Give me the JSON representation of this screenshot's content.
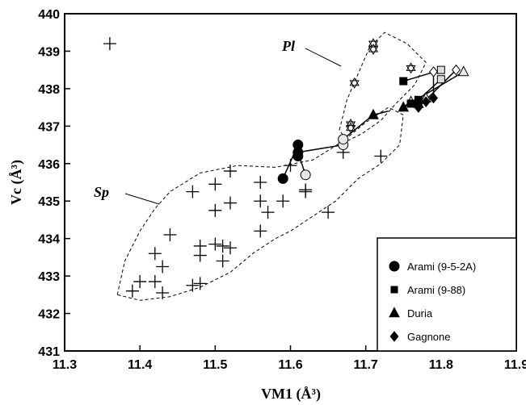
{
  "chart_data": {
    "type": "scatter",
    "xlabel": "VM1 (Å³)",
    "ylabel": "Vc (Å³)",
    "xlim": [
      11.3,
      11.9
    ],
    "ylim": [
      431,
      440
    ],
    "x_ticks": [
      "11.3",
      "11.4",
      "11.5",
      "11.6",
      "11.7",
      "11.8",
      "11.9"
    ],
    "y_ticks": [
      "431",
      "432",
      "433",
      "434",
      "435",
      "436",
      "437",
      "438",
      "439",
      "440"
    ],
    "grid": false,
    "legend_position": "bottom-right",
    "region_labels": [
      {
        "text": "Sp",
        "region": "Sp"
      },
      {
        "text": "Pl",
        "region": "Pl"
      }
    ],
    "regions": {
      "Sp": [
        [
          11.37,
          432.5
        ],
        [
          11.38,
          433.4
        ],
        [
          11.4,
          434.2
        ],
        [
          11.42,
          434.8
        ],
        [
          11.44,
          435.25
        ],
        [
          11.48,
          435.75
        ],
        [
          11.53,
          435.95
        ],
        [
          11.58,
          435.9
        ],
        [
          11.63,
          436.1
        ],
        [
          11.67,
          436.6
        ],
        [
          11.7,
          437.1
        ],
        [
          11.73,
          437.5
        ],
        [
          11.75,
          437.3
        ],
        [
          11.745,
          436.5
        ],
        [
          11.72,
          436.0
        ],
        [
          11.69,
          435.6
        ],
        [
          11.66,
          435.0
        ],
        [
          11.63,
          434.6
        ],
        [
          11.6,
          434.2
        ],
        [
          11.58,
          434.0
        ],
        [
          11.55,
          433.6
        ],
        [
          11.52,
          433.1
        ],
        [
          11.48,
          432.7
        ],
        [
          11.44,
          432.45
        ],
        [
          11.4,
          432.35
        ]
      ],
      "Pl": [
        [
          11.665,
          436.9
        ],
        [
          11.675,
          437.7
        ],
        [
          11.69,
          438.4
        ],
        [
          11.705,
          439.1
        ],
        [
          11.725,
          439.5
        ],
        [
          11.755,
          439.2
        ],
        [
          11.78,
          438.7
        ],
        [
          11.765,
          438.1
        ],
        [
          11.74,
          437.6
        ],
        [
          11.72,
          437.15
        ],
        [
          11.695,
          436.8
        ],
        [
          11.675,
          436.6
        ]
      ]
    },
    "plus_points": [
      [
        11.36,
        439.2
      ],
      [
        11.47,
        435.25
      ],
      [
        11.5,
        435.45
      ],
      [
        11.52,
        435.8
      ],
      [
        11.5,
        434.75
      ],
      [
        11.52,
        434.95
      ],
      [
        11.56,
        435.0
      ],
      [
        11.56,
        435.5
      ],
      [
        11.57,
        434.7
      ],
      [
        11.59,
        435.0
      ],
      [
        11.6,
        435.95
      ],
      [
        11.62,
        435.3
      ],
      [
        11.62,
        435.25
      ],
      [
        11.56,
        434.2
      ],
      [
        11.65,
        434.7
      ],
      [
        11.67,
        436.3
      ],
      [
        11.72,
        436.2
      ],
      [
        11.44,
        434.1
      ],
      [
        11.42,
        433.6
      ],
      [
        11.43,
        433.25
      ],
      [
        11.48,
        433.8
      ],
      [
        11.48,
        433.55
      ],
      [
        11.5,
        433.85
      ],
      [
        11.51,
        433.8
      ],
      [
        11.52,
        433.75
      ],
      [
        11.51,
        433.4
      ],
      [
        11.39,
        432.6
      ],
      [
        11.4,
        432.85
      ],
      [
        11.42,
        432.85
      ],
      [
        11.43,
        432.55
      ],
      [
        11.47,
        432.75
      ],
      [
        11.48,
        432.8
      ]
    ],
    "star_points": [
      [
        11.71,
        439.2
      ],
      [
        11.71,
        439.05
      ],
      [
        11.76,
        438.55
      ],
      [
        11.685,
        438.15
      ],
      [
        11.68,
        437.05
      ],
      [
        11.68,
        436.95
      ]
    ],
    "open_circles": [
      [
        11.62,
        435.7
      ],
      [
        11.67,
        436.5
      ],
      [
        11.67,
        436.65
      ]
    ],
    "open_squares": [
      [
        11.8,
        438.5
      ],
      [
        11.8,
        438.25
      ]
    ],
    "open_triangles": [
      [
        11.76,
        437.65
      ],
      [
        11.78,
        437.75
      ],
      [
        11.83,
        438.45
      ]
    ],
    "open_diamonds": [
      [
        11.82,
        438.5
      ],
      [
        11.79,
        438.45
      ]
    ],
    "series": [
      {
        "name": "Arami (9-5-2A)",
        "marker": "circle",
        "points": [
          [
            11.59,
            435.6
          ],
          [
            11.61,
            436.5
          ],
          [
            11.61,
            436.3
          ],
          [
            11.61,
            436.2
          ]
        ]
      },
      {
        "name": "Arami (9-88)",
        "marker": "square",
        "points": [
          [
            11.75,
            438.2
          ],
          [
            11.76,
            437.6
          ],
          [
            11.77,
            437.7
          ]
        ]
      },
      {
        "name": "Duria",
        "marker": "triangle",
        "points": [
          [
            11.71,
            437.3
          ],
          [
            11.75,
            437.5
          ],
          [
            11.77,
            437.6
          ]
        ]
      },
      {
        "name": "Gagnone",
        "marker": "diamond",
        "points": [
          [
            11.77,
            437.5
          ],
          [
            11.78,
            437.65
          ],
          [
            11.79,
            437.75
          ]
        ]
      }
    ],
    "connector_lines": [
      [
        [
          11.59,
          435.6
        ],
        [
          11.61,
          436.5
        ]
      ],
      [
        [
          11.61,
          436.5
        ],
        [
          11.61,
          436.3
        ]
      ],
      [
        [
          11.61,
          436.3
        ],
        [
          11.62,
          435.7
        ]
      ],
      [
        [
          11.61,
          436.3
        ],
        [
          11.67,
          436.5
        ]
      ],
      [
        [
          11.67,
          436.65
        ],
        [
          11.71,
          437.3
        ]
      ],
      [
        [
          11.71,
          437.3
        ],
        [
          11.73,
          437.4
        ]
      ],
      [
        [
          11.75,
          438.2
        ],
        [
          11.8,
          438.5
        ]
      ],
      [
        [
          11.77,
          437.7
        ],
        [
          11.8,
          438.25
        ]
      ],
      [
        [
          11.75,
          437.5
        ],
        [
          11.76,
          437.65
        ]
      ],
      [
        [
          11.77,
          437.6
        ],
        [
          11.78,
          437.75
        ]
      ],
      [
        [
          11.75,
          437.5
        ],
        [
          11.83,
          438.45
        ]
      ],
      [
        [
          11.77,
          437.5
        ],
        [
          11.82,
          438.5
        ]
      ],
      [
        [
          11.79,
          437.75
        ],
        [
          11.79,
          438.45
        ]
      ]
    ]
  }
}
